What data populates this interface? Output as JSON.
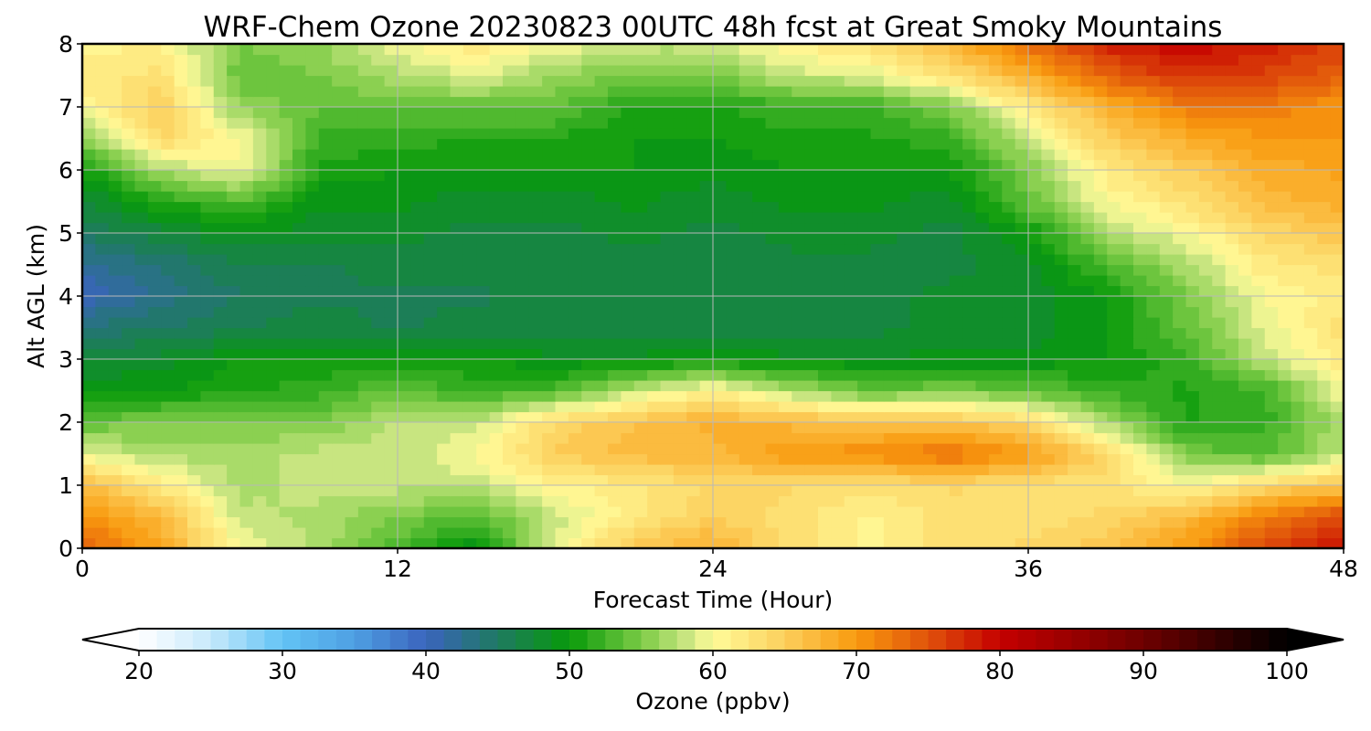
{
  "chart_data": {
    "type": "heatmap",
    "title": "WRF-Chem Ozone  20230823 00UTC 48h fcst at Great Smoky Mountains",
    "xlabel": "Forecast Time (Hour)",
    "ylabel": "Alt AGL (km)",
    "xlim": [
      0,
      48
    ],
    "ylim": [
      0,
      8
    ],
    "xticks": [
      "0",
      "12",
      "24",
      "36",
      "48"
    ],
    "yticks": [
      "0",
      "1",
      "2",
      "3",
      "4",
      "5",
      "6",
      "7",
      "8"
    ],
    "grid": true,
    "x": [
      0,
      3,
      6,
      9,
      12,
      15,
      18,
      21,
      24,
      27,
      30,
      33,
      36,
      39,
      42,
      45,
      48
    ],
    "y": [
      0,
      0.5,
      1,
      1.5,
      2,
      2.5,
      3,
      3.5,
      4,
      4.5,
      5,
      5.5,
      6,
      6.5,
      7,
      7.5,
      8
    ],
    "z_units": "ppbv",
    "z": [
      [
        74,
        69,
        60,
        57,
        53,
        49,
        59,
        66,
        68,
        63,
        61,
        63,
        64,
        66,
        70,
        76,
        79
      ],
      [
        71,
        67,
        58,
        57,
        55,
        53,
        58,
        62,
        65,
        63,
        61,
        63,
        63,
        64,
        67,
        72,
        76
      ],
      [
        67,
        62,
        57,
        58,
        58,
        58,
        61,
        62,
        64,
        64,
        63,
        64,
        63,
        63,
        60,
        64,
        66
      ],
      [
        59,
        57,
        57,
        58,
        58,
        60,
        65,
        67,
        67,
        70,
        71,
        73,
        70,
        64,
        55,
        53,
        58
      ],
      [
        54,
        55,
        55,
        55,
        58,
        58,
        64,
        66,
        68,
        67,
        66,
        66,
        64,
        57,
        51,
        52,
        57
      ],
      [
        50,
        50,
        51,
        52,
        54,
        52,
        53,
        58,
        61,
        57,
        54,
        55,
        54,
        52,
        51,
        52,
        60
      ],
      [
        47,
        48,
        50,
        50,
        50,
        50,
        49,
        49,
        50,
        49,
        49,
        49,
        49,
        50,
        52,
        58,
        62
      ],
      [
        44,
        45,
        46,
        47,
        46,
        47,
        47,
        47,
        47,
        47,
        47,
        48,
        48,
        50,
        54,
        59,
        63
      ],
      [
        40,
        43,
        45,
        46,
        46,
        46,
        47,
        47,
        47,
        47,
        47,
        48,
        48,
        50,
        55,
        60,
        62
      ],
      [
        42,
        44,
        46,
        46,
        47,
        47,
        47,
        47,
        47,
        47,
        47,
        47,
        48,
        53,
        57,
        62,
        63
      ],
      [
        45,
        47,
        49,
        48,
        48,
        47,
        47,
        48,
        47,
        48,
        48,
        47,
        50,
        57,
        60,
        64,
        66
      ],
      [
        47,
        51,
        53,
        49,
        49,
        48,
        48,
        49,
        48,
        49,
        49,
        48,
        54,
        60,
        63,
        67,
        68
      ],
      [
        50,
        57,
        60,
        51,
        50,
        50,
        50,
        50,
        49,
        50,
        50,
        50,
        55,
        62,
        65,
        68,
        69
      ],
      [
        56,
        64,
        60,
        52,
        52,
        51,
        51,
        50,
        50,
        51,
        51,
        52,
        58,
        65,
        68,
        70,
        70
      ],
      [
        60,
        65,
        56,
        54,
        54,
        54,
        54,
        51,
        51,
        52,
        52,
        55,
        62,
        68,
        72,
        72,
        70
      ],
      [
        62,
        63,
        54,
        55,
        57,
        59,
        56,
        55,
        55,
        58,
        59,
        63,
        68,
        74,
        77,
        76,
        74
      ],
      [
        61,
        61,
        55,
        56,
        60,
        62,
        60,
        58,
        58,
        61,
        63,
        67,
        73,
        78,
        80,
        78,
        76
      ]
    ],
    "colorbar": {
      "label": "Ozone  (ppbv)",
      "min": 20,
      "max": 100,
      "ticks": [
        "20",
        "30",
        "40",
        "50",
        "60",
        "70",
        "80",
        "90",
        "100"
      ],
      "extend": "both",
      "stops": [
        {
          "v": 20,
          "c": "#ffffff"
        },
        {
          "v": 25,
          "c": "#c7e9fb"
        },
        {
          "v": 30,
          "c": "#62c3f5"
        },
        {
          "v": 35,
          "c": "#4f9fe3"
        },
        {
          "v": 40,
          "c": "#3a64bd"
        },
        {
          "v": 45,
          "c": "#1f7a62"
        },
        {
          "v": 50,
          "c": "#079a0a"
        },
        {
          "v": 55,
          "c": "#7ccb45"
        },
        {
          "v": 58,
          "c": "#c4e47e"
        },
        {
          "v": 60,
          "c": "#fffb9a"
        },
        {
          "v": 65,
          "c": "#fccf5c"
        },
        {
          "v": 70,
          "c": "#f99a0e"
        },
        {
          "v": 75,
          "c": "#e0520b"
        },
        {
          "v": 80,
          "c": "#c40000"
        },
        {
          "v": 90,
          "c": "#6e0000"
        },
        {
          "v": 100,
          "c": "#000000"
        }
      ]
    }
  }
}
